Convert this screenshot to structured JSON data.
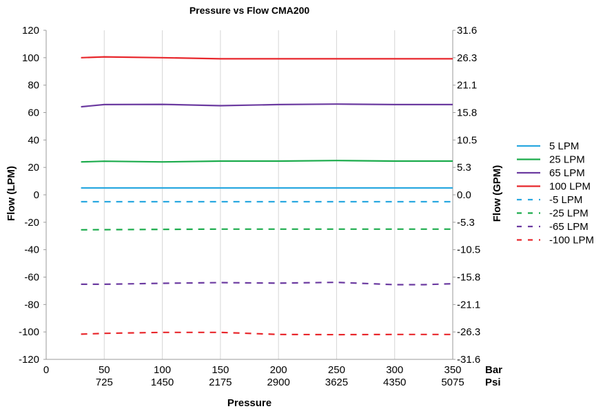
{
  "chart_data": {
    "type": "line",
    "title": "Pressure vs Flow CMA200",
    "xlabel": "Pressure",
    "ylabel": "Flow (LPM)",
    "y2label": "Flow (GPM)",
    "xlim": [
      0,
      350
    ],
    "ylim": [
      -120,
      120
    ],
    "x_ticks": [
      "0",
      "50",
      "100",
      "150",
      "200",
      "250",
      "300",
      "350"
    ],
    "x_unit_primary": "Bar",
    "x_ticks_secondary": [
      "725",
      "1450",
      "2175",
      "2900",
      "3625",
      "4350",
      "5075"
    ],
    "x_unit_secondary": "Psi",
    "y_ticks": [
      "120",
      "100",
      "80",
      "60",
      "40",
      "20",
      "0",
      "-20",
      "-40",
      "-60",
      "-80",
      "-100",
      "-120"
    ],
    "y2_ticks": [
      "31.6",
      "26.3",
      "21.1",
      "15.8",
      "10.5",
      "5.3",
      "0.0",
      "-5.3",
      "-10.5",
      "-15.8",
      "-21.1",
      "-26.3",
      "-31.6"
    ],
    "grid": "vertical",
    "legend_position": "right",
    "series": [
      {
        "name": "5 LPM",
        "color": "#29a8e0",
        "dash": false,
        "x": [
          30,
          50,
          100,
          150,
          200,
          250,
          300,
          350
        ],
        "values": [
          5,
          5,
          5,
          5,
          5,
          5,
          5,
          5
        ]
      },
      {
        "name": "25 LPM",
        "color": "#1aab4b",
        "dash": false,
        "x": [
          30,
          50,
          100,
          150,
          200,
          250,
          300,
          350
        ],
        "values": [
          24,
          24.5,
          24,
          24.6,
          24.6,
          25,
          24.6,
          24.6
        ]
      },
      {
        "name": "65 LPM",
        "color": "#6b3aa0",
        "dash": false,
        "x": [
          30,
          50,
          100,
          150,
          200,
          250,
          300,
          350
        ],
        "values": [
          64.2,
          65.8,
          66,
          65,
          65.8,
          66.2,
          65.8,
          65.8
        ]
      },
      {
        "name": "100 LPM",
        "color": "#e8262b",
        "dash": false,
        "x": [
          30,
          50,
          100,
          150,
          200,
          250,
          300,
          350
        ],
        "values": [
          100,
          100.6,
          100,
          99.2,
          99.2,
          99.2,
          99.2,
          99.2
        ]
      },
      {
        "name": "-5 LPM",
        "color": "#29a8e0",
        "dash": true,
        "x": [
          30,
          50,
          100,
          150,
          200,
          250,
          300,
          350
        ],
        "values": [
          -5,
          -5,
          -5,
          -5,
          -5,
          -5,
          -5,
          -5
        ]
      },
      {
        "name": "-25 LPM",
        "color": "#1aab4b",
        "dash": true,
        "x": [
          30,
          50,
          100,
          150,
          200,
          250,
          300,
          350
        ],
        "values": [
          -25.5,
          -25.4,
          -25.2,
          -25,
          -25,
          -25,
          -25,
          -25
        ]
      },
      {
        "name": "-65 LPM",
        "color": "#6b3aa0",
        "dash": true,
        "x": [
          30,
          50,
          100,
          150,
          200,
          250,
          300,
          325,
          350
        ],
        "values": [
          -65.2,
          -65.2,
          -64.5,
          -64,
          -64.4,
          -63.8,
          -65.5,
          -65.5,
          -64.8
        ]
      },
      {
        "name": "-100 LPM",
        "color": "#e8262b",
        "dash": true,
        "x": [
          30,
          50,
          100,
          150,
          200,
          250,
          300,
          350
        ],
        "values": [
          -101.6,
          -101,
          -100.3,
          -100.3,
          -101.8,
          -102,
          -101.8,
          -101.8
        ]
      }
    ]
  }
}
